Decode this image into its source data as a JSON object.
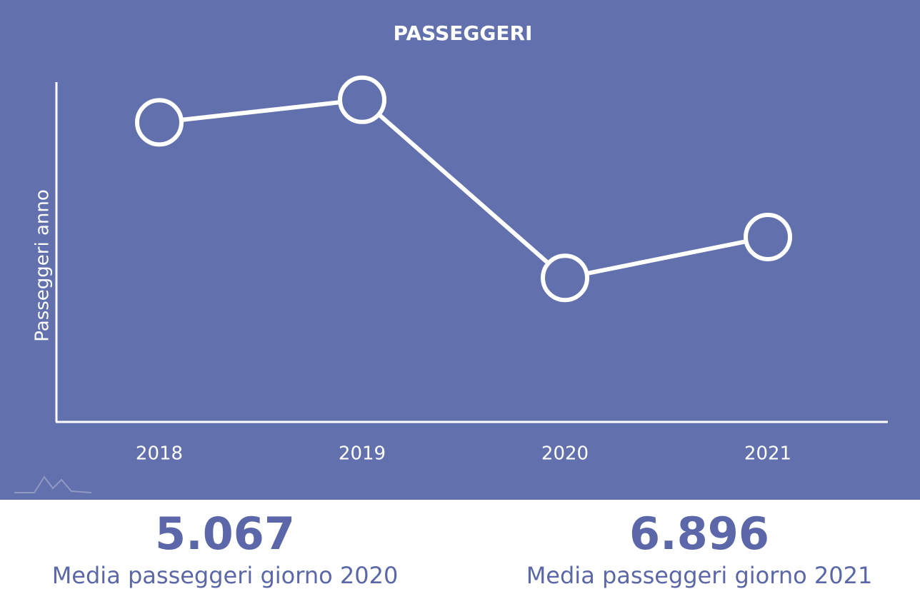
{
  "chart_data": {
    "type": "line",
    "title": "PASSEGGERI",
    "y_label": "Passeggeri anno",
    "categories": [
      "2018",
      "2019",
      "2020",
      "2021"
    ],
    "values": [
      4400000,
      4770000,
      1850000,
      2520000
    ],
    "color": "#ffffff",
    "background": "#6271ad",
    "ylim": [
      -500000,
      5060000
    ]
  },
  "stats": [
    {
      "value": "5.067",
      "label": "Media passeggeri giorno 2020"
    },
    {
      "value": "6.896",
      "label": "Media passeggeri giorno 2021"
    }
  ]
}
